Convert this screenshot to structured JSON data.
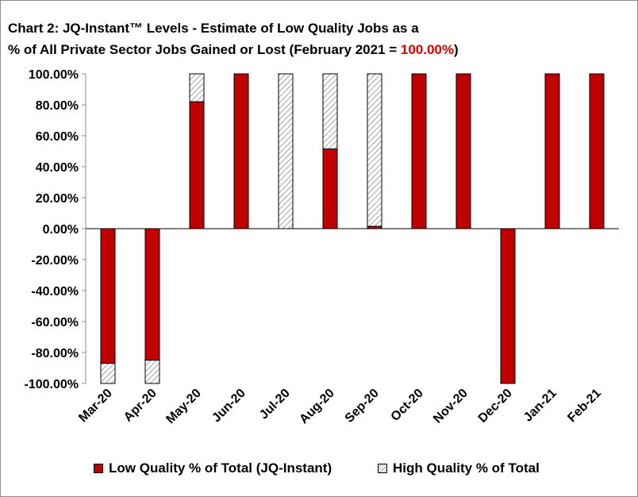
{
  "title": {
    "line1": "Chart 2: JQ-Instant™ Levels - Estimate of Low Quality Jobs as a",
    "line2_prefix": "% of All Private Sector Jobs Gained or Lost (February 2021  = ",
    "line2_highlight": "100.00%",
    "line2_suffix": ")"
  },
  "colors": {
    "low_quality": "#c00000",
    "highlight": "#e00000",
    "high_quality_pattern": "diagonal-hatch-gray"
  },
  "chart_data": {
    "type": "bar",
    "stacked": true,
    "categories": [
      "Mar-20",
      "Apr-20",
      "May-20",
      "Jun-20",
      "Jul-20",
      "Aug-20",
      "Sep-20",
      "Oct-20",
      "Nov-20",
      "Dec-20",
      "Jan-21",
      "Feb-21"
    ],
    "series": [
      {
        "name": "Low Quality % of Total (JQ-Instant)",
        "values": [
          -87,
          -85,
          82,
          100,
          0,
          51.5,
          1.5,
          100,
          100,
          -100,
          100,
          100
        ]
      },
      {
        "name": "High Quality % of Total",
        "values": [
          -13,
          -15,
          18,
          0,
          100,
          48.5,
          98.5,
          0,
          0,
          0,
          0,
          0
        ]
      }
    ],
    "y_ticks": [
      "100.00%",
      "80.00%",
      "60.00%",
      "40.00%",
      "20.00%",
      "0.00%",
      "-20.00%",
      "-40.00%",
      "-60.00%",
      "-80.00%",
      "-100.00%"
    ],
    "ylim": [
      -100,
      100
    ],
    "grid": false,
    "legend": "bottom"
  }
}
